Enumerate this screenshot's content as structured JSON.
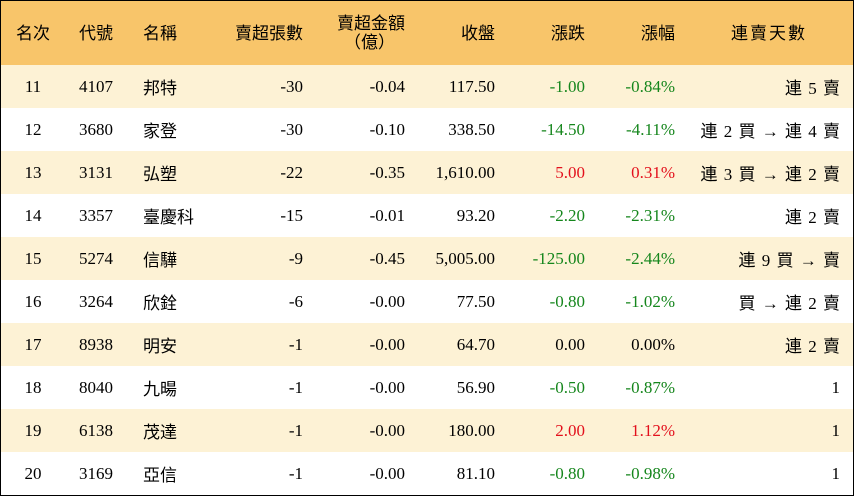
{
  "colors": {
    "header_bg": "#F8C56A",
    "row_odd_bg": "#FDF2D5",
    "row_even_bg": "#FFFFFF",
    "up": "#E3101C",
    "down": "#15861C"
  },
  "header": {
    "rank": "名次",
    "code": "代號",
    "name": "名稱",
    "sell_lots": "賣超張數",
    "sell_amount_line1": "賣超金額",
    "sell_amount_line2": "（億）",
    "close": "收盤",
    "change": "漲跌",
    "change_pct": "漲幅",
    "streak": "連賣天數"
  },
  "rows": [
    {
      "rank": "11",
      "code": "4107",
      "name": "邦特",
      "sell_lots": "-30",
      "sell_amount": "-0.04",
      "close": "117.50",
      "change": "-1.00",
      "change_pct": "-0.84%",
      "dir": "down",
      "streak": "連 5 賣"
    },
    {
      "rank": "12",
      "code": "3680",
      "name": "家登",
      "sell_lots": "-30",
      "sell_amount": "-0.10",
      "close": "338.50",
      "change": "-14.50",
      "change_pct": "-4.11%",
      "dir": "down",
      "streak": "連 2 買 → 連 4 賣"
    },
    {
      "rank": "13",
      "code": "3131",
      "name": "弘塑",
      "sell_lots": "-22",
      "sell_amount": "-0.35",
      "close": "1,610.00",
      "change": "5.00",
      "change_pct": "0.31%",
      "dir": "up",
      "streak": "連 3 買 → 連 2 賣"
    },
    {
      "rank": "14",
      "code": "3357",
      "name": "臺慶科",
      "sell_lots": "-15",
      "sell_amount": "-0.01",
      "close": "93.20",
      "change": "-2.20",
      "change_pct": "-2.31%",
      "dir": "down",
      "streak": "連 2 賣"
    },
    {
      "rank": "15",
      "code": "5274",
      "name": "信驊",
      "sell_lots": "-9",
      "sell_amount": "-0.45",
      "close": "5,005.00",
      "change": "-125.00",
      "change_pct": "-2.44%",
      "dir": "down",
      "streak": "連 9 買 → 賣"
    },
    {
      "rank": "16",
      "code": "3264",
      "name": "欣銓",
      "sell_lots": "-6",
      "sell_amount": "-0.00",
      "close": "77.50",
      "change": "-0.80",
      "change_pct": "-1.02%",
      "dir": "down",
      "streak": "買 → 連 2 賣"
    },
    {
      "rank": "17",
      "code": "8938",
      "name": "明安",
      "sell_lots": "-1",
      "sell_amount": "-0.00",
      "close": "64.70",
      "change": "0.00",
      "change_pct": "0.00%",
      "dir": "flat",
      "streak": "連 2 賣"
    },
    {
      "rank": "18",
      "code": "8040",
      "name": "九暘",
      "sell_lots": "-1",
      "sell_amount": "-0.00",
      "close": "56.90",
      "change": "-0.50",
      "change_pct": "-0.87%",
      "dir": "down",
      "streak": "1"
    },
    {
      "rank": "19",
      "code": "6138",
      "name": "茂達",
      "sell_lots": "-1",
      "sell_amount": "-0.00",
      "close": "180.00",
      "change": "2.00",
      "change_pct": "1.12%",
      "dir": "up",
      "streak": "1"
    },
    {
      "rank": "20",
      "code": "3169",
      "name": "亞信",
      "sell_lots": "-1",
      "sell_amount": "-0.00",
      "close": "81.10",
      "change": "-0.80",
      "change_pct": "-0.98%",
      "dir": "down",
      "streak": "1"
    }
  ]
}
